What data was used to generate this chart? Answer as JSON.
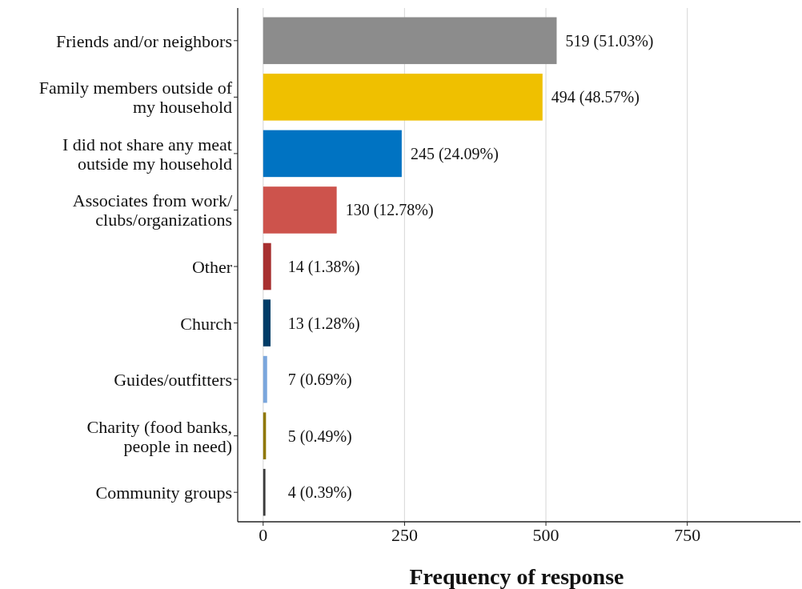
{
  "chart_data": {
    "type": "bar",
    "orientation": "horizontal",
    "xlabel": "Frequency of response",
    "categories": [
      "Friends and/or neighbors",
      "Family members outside of\nmy household",
      "I did not share any meat\noutside my household",
      "Associates from work/\nclubs/organizations",
      "Other",
      "Church",
      "Guides/outfitters",
      "Charity (food banks,\npeople in need)",
      "Community groups"
    ],
    "values": [
      519,
      494,
      245,
      130,
      14,
      13,
      7,
      5,
      4
    ],
    "colors": [
      "#8c8c8c",
      "#efc000",
      "#0073c2",
      "#cd534c",
      "#a73030",
      "#003c67",
      "#7aa6dc",
      "#8f7700",
      "#3b3b3b"
    ],
    "value_labels": [
      "519 (51.03%)",
      "494 (48.57%)",
      "245 (24.09%)",
      "130 (12.78%)",
      "14 (1.38%)",
      "13 (1.28%)",
      "7 (0.69%)",
      "5 (0.49%)",
      "4 (0.39%)"
    ],
    "xlim": [
      -45,
      950
    ],
    "xticks": [
      0,
      250,
      500,
      750
    ],
    "grid": "x"
  }
}
